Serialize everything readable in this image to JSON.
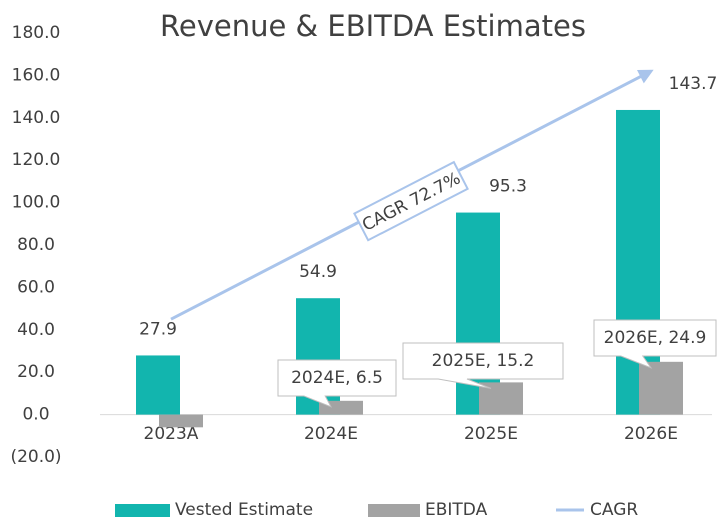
{
  "chart_data": {
    "type": "bar",
    "title": "Revenue & EBITDA Estimates",
    "categories": [
      "2023A",
      "2024E",
      "2025E",
      "2026E"
    ],
    "series": [
      {
        "name": "Vested Estimate",
        "color": "#12b5ae",
        "values": [
          27.9,
          54.9,
          95.3,
          143.7
        ]
      },
      {
        "name": "EBITDA",
        "color": "#a3a3a3",
        "values": [
          -6,
          6.5,
          15.2,
          24.9
        ],
        "value_labels": [
          null,
          "2024E, 6.5",
          "2025E, 15.2",
          "2026E, 24.9"
        ]
      },
      {
        "name": "CAGR",
        "type": "line",
        "color": "#a9c4eb",
        "values": [
          45,
          84,
          123,
          162
        ],
        "label": "CAGR 72.7%"
      }
    ],
    "ylim": [
      -20,
      180
    ],
    "yticks": [
      {
        "value": -20,
        "label": "(20.0)"
      },
      {
        "value": 0,
        "label": "0.0"
      },
      {
        "value": 20,
        "label": "20.0"
      },
      {
        "value": 40,
        "label": "40.0"
      },
      {
        "value": 60,
        "label": "60.0"
      },
      {
        "value": 80,
        "label": "80.0"
      },
      {
        "value": 100,
        "label": "100.0"
      },
      {
        "value": 120,
        "label": "120.0"
      },
      {
        "value": 140,
        "label": "140.0"
      },
      {
        "value": 160,
        "label": "160.0"
      },
      {
        "value": 180,
        "label": "180.0"
      }
    ],
    "legend": "bottom"
  }
}
